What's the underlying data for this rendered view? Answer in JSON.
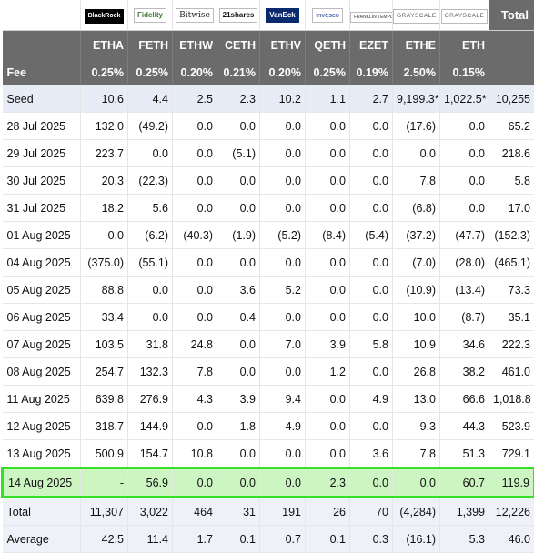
{
  "header": {
    "issuers": [
      {
        "name": "BlackRock",
        "style": "blackrock"
      },
      {
        "name": "Fidelity",
        "style": "fidelity"
      },
      {
        "name": "Bitwise",
        "style": "bitwise"
      },
      {
        "name": "21shares",
        "style": "twentyone"
      },
      {
        "name": "VanEck",
        "style": "vaneck"
      },
      {
        "name": "Invesco",
        "style": "invesco"
      },
      {
        "name": "FRANKLIN TEMPLETON",
        "style": "franklin"
      },
      {
        "name": "GRAYSCALE",
        "style": "grayscale"
      },
      {
        "name": "GRAYSCALE",
        "style": "grayscale"
      }
    ],
    "total_label": "Total",
    "tickers": [
      "ETHA",
      "FETH",
      "ETHW",
      "CETH",
      "ETHV",
      "QETH",
      "EZET",
      "ETHE",
      "ETH"
    ],
    "fee_label": "Fee",
    "fees": [
      "0.25%",
      "0.25%",
      "0.20%",
      "0.21%",
      "0.20%",
      "0.25%",
      "0.19%",
      "2.50%",
      "0.15%"
    ]
  },
  "rows": [
    {
      "label": "Seed",
      "values": [
        "10.6",
        "4.4",
        "2.5",
        "2.3",
        "10.2",
        "1.1",
        "2.7",
        "9,199.3*",
        "1,022.5*"
      ],
      "total": "10,255"
    },
    {
      "label": "28 Jul 2025",
      "values": [
        "132.0",
        "(49.2)",
        "0.0",
        "0.0",
        "0.0",
        "0.0",
        "0.0",
        "(17.6)",
        "0.0"
      ],
      "total": "65.2"
    },
    {
      "label": "29 Jul 2025",
      "values": [
        "223.7",
        "0.0",
        "0.0",
        "(5.1)",
        "0.0",
        "0.0",
        "0.0",
        "0.0",
        "0.0"
      ],
      "total": "218.6"
    },
    {
      "label": "30 Jul 2025",
      "values": [
        "20.3",
        "(22.3)",
        "0.0",
        "0.0",
        "0.0",
        "0.0",
        "0.0",
        "7.8",
        "0.0"
      ],
      "total": "5.8"
    },
    {
      "label": "31 Jul 2025",
      "values": [
        "18.2",
        "5.6",
        "0.0",
        "0.0",
        "0.0",
        "0.0",
        "0.0",
        "(6.8)",
        "0.0"
      ],
      "total": "17.0"
    },
    {
      "label": "01 Aug 2025",
      "values": [
        "0.0",
        "(6.2)",
        "(40.3)",
        "(1.9)",
        "(5.2)",
        "(8.4)",
        "(5.4)",
        "(37.2)",
        "(47.7)"
      ],
      "total": "(152.3)"
    },
    {
      "label": "04 Aug 2025",
      "values": [
        "(375.0)",
        "(55.1)",
        "0.0",
        "0.0",
        "0.0",
        "0.0",
        "0.0",
        "(7.0)",
        "(28.0)"
      ],
      "total": "(465.1)"
    },
    {
      "label": "05 Aug 2025",
      "values": [
        "88.8",
        "0.0",
        "0.0",
        "3.6",
        "5.2",
        "0.0",
        "0.0",
        "(10.9)",
        "(13.4)"
      ],
      "total": "73.3"
    },
    {
      "label": "06 Aug 2025",
      "values": [
        "33.4",
        "0.0",
        "0.0",
        "0.4",
        "0.0",
        "0.0",
        "0.0",
        "10.0",
        "(8.7)"
      ],
      "total": "35.1"
    },
    {
      "label": "07 Aug 2025",
      "values": [
        "103.5",
        "31.8",
        "24.8",
        "0.0",
        "7.0",
        "3.9",
        "5.8",
        "10.9",
        "34.6"
      ],
      "total": "222.3"
    },
    {
      "label": "08 Aug 2025",
      "values": [
        "254.7",
        "132.3",
        "7.8",
        "0.0",
        "0.0",
        "1.2",
        "0.0",
        "26.8",
        "38.2"
      ],
      "total": "461.0"
    },
    {
      "label": "11 Aug 2025",
      "values": [
        "639.8",
        "276.9",
        "4.3",
        "3.9",
        "9.4",
        "0.0",
        "4.9",
        "13.0",
        "66.6"
      ],
      "total": "1,018.8"
    },
    {
      "label": "12 Aug 2025",
      "values": [
        "318.7",
        "144.9",
        "0.0",
        "1.8",
        "4.9",
        "0.0",
        "0.0",
        "9.3",
        "44.3"
      ],
      "total": "523.9"
    },
    {
      "label": "13 Aug 2025",
      "values": [
        "500.9",
        "154.7",
        "10.8",
        "0.0",
        "0.0",
        "0.0",
        "3.6",
        "7.8",
        "51.3"
      ],
      "total": "729.1"
    },
    {
      "label": "14 Aug 2025",
      "values": [
        "-",
        "56.9",
        "0.0",
        "0.0",
        "0.0",
        "2.3",
        "0.0",
        "0.0",
        "60.7"
      ],
      "total": "119.9",
      "highlight": true
    }
  ],
  "summary": [
    {
      "label": "Total",
      "values": [
        "11,307",
        "3,022",
        "464",
        "31",
        "191",
        "26",
        "70",
        "(4,284)",
        "1,399"
      ],
      "total": "12,226"
    },
    {
      "label": "Average",
      "values": [
        "42.5",
        "11.4",
        "1.7",
        "0.1",
        "0.7",
        "0.1",
        "0.3",
        "(16.1)",
        "5.3"
      ],
      "total": "46.0"
    }
  ],
  "colors": {
    "header_bg": "#6b6b6b",
    "negative": "#d10000",
    "highlight_border": "#35e026",
    "highlight_fill": "#ccf5c2",
    "seed_row_bg": "#e8ecf6"
  }
}
